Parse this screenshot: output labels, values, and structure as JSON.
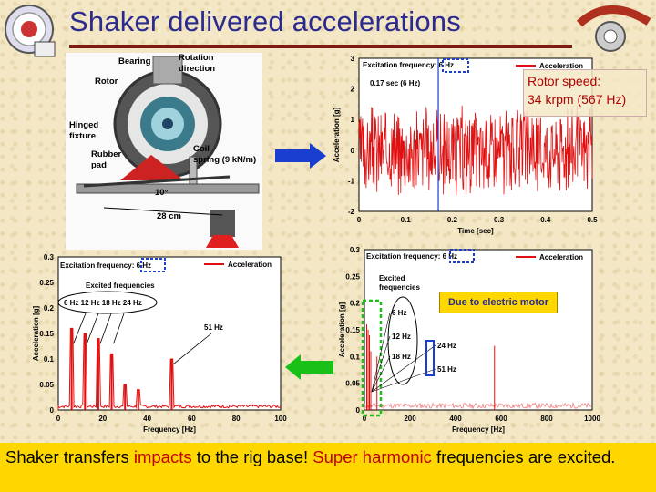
{
  "slide": {
    "title": "Shaker delivered accelerations",
    "rotor_speed_line1": "Rotor speed:",
    "rotor_speed_line2": "34 krpm (567 Hz)",
    "motor_note": "Due to electric motor",
    "bottom": {
      "p1": "Shaker transfers ",
      "p2": "impacts",
      "p3": " to the rig base! ",
      "p4": "Super harmonic",
      "p5": " frequencies are excited."
    },
    "colors": {
      "title": "#2a2a90",
      "rule": "#7a1a10",
      "highlight": "#c00000",
      "bar": "#ffd700",
      "signal": "#e01010",
      "arrow_blue": "#1a3fd0",
      "arrow_green": "#18c018"
    }
  },
  "photo_labels": {
    "bearing": "Bearing",
    "rotation": "Rotation",
    "direction": "direction",
    "rotor": "Rotor",
    "hinged": "Hinged",
    "fixture": "fixture",
    "rubber": "Rubber",
    "pad": "pad",
    "coil": "Coil",
    "spring": "spring (9 kN/m)",
    "angle": "10°",
    "length": "28 cm"
  },
  "chart_data": [
    {
      "type": "line",
      "name_label": "time-trace",
      "legend": "Acceleration",
      "annotation_freq": "Excitation frequency: 6 Hz",
      "annotation_time": "0.17 sec (6 Hz)",
      "xlabel": "Time [sec]",
      "ylabel": "Acceleration [g]",
      "xlim": [
        0,
        0.5
      ],
      "ylim": [
        -2,
        3
      ],
      "xticks": [
        "0",
        "0.1",
        "0.2",
        "0.3",
        "0.4",
        "0.5"
      ],
      "yticks": [
        "-2",
        "-1",
        "0",
        "1",
        "2",
        "3"
      ],
      "marker_x": 0.17
    },
    {
      "type": "line",
      "name_label": "fft-zoom",
      "legend": "Acceleration",
      "annotation_freq": "Excitation frequency: 6 Hz",
      "annotation_excited1": "Excited frequencies",
      "annotation_harmonics": "6 Hz 12 Hz 18 Hz 24 Hz",
      "annotation_51": "51 Hz",
      "xlabel": "Frequency [Hz]",
      "ylabel": "Acceleration [g]",
      "xlim": [
        0,
        100
      ],
      "ylim": [
        0,
        0.3
      ],
      "xticks": [
        "0",
        "20",
        "40",
        "60",
        "80",
        "100"
      ],
      "yticks": [
        "0",
        "0.05",
        "0.1",
        "0.15",
        "0.2",
        "0.25",
        "0.3"
      ],
      "peaks": [
        [
          6,
          0.16
        ],
        [
          12,
          0.15
        ],
        [
          18,
          0.14
        ],
        [
          24,
          0.11
        ],
        [
          30,
          0.05
        ],
        [
          36,
          0.04
        ],
        [
          51,
          0.1
        ]
      ]
    },
    {
      "type": "line",
      "name_label": "fft-full",
      "legend": "Acceleration",
      "annotation_freq": "Excitation frequency: 6 Hz",
      "annotation_excited1": "Excited",
      "annotation_excited2": "frequencies",
      "labels": [
        "6 Hz",
        "12 Hz",
        "18 Hz",
        "24 Hz",
        "51 Hz"
      ],
      "xlabel": "Frequency [Hz]",
      "ylabel": "Acceleration [g]",
      "xlim": [
        0,
        1000
      ],
      "ylim": [
        0,
        0.3
      ],
      "xticks": [
        "0",
        "200",
        "400",
        "600",
        "800",
        "1000"
      ],
      "yticks": [
        "0",
        "0.05",
        "0.1",
        "0.15",
        "0.2",
        "0.25",
        "0.3"
      ],
      "peaks": [
        [
          6,
          0.16
        ],
        [
          12,
          0.15
        ],
        [
          18,
          0.14
        ],
        [
          24,
          0.11
        ],
        [
          51,
          0.1
        ],
        [
          567,
          0.12
        ]
      ]
    }
  ]
}
